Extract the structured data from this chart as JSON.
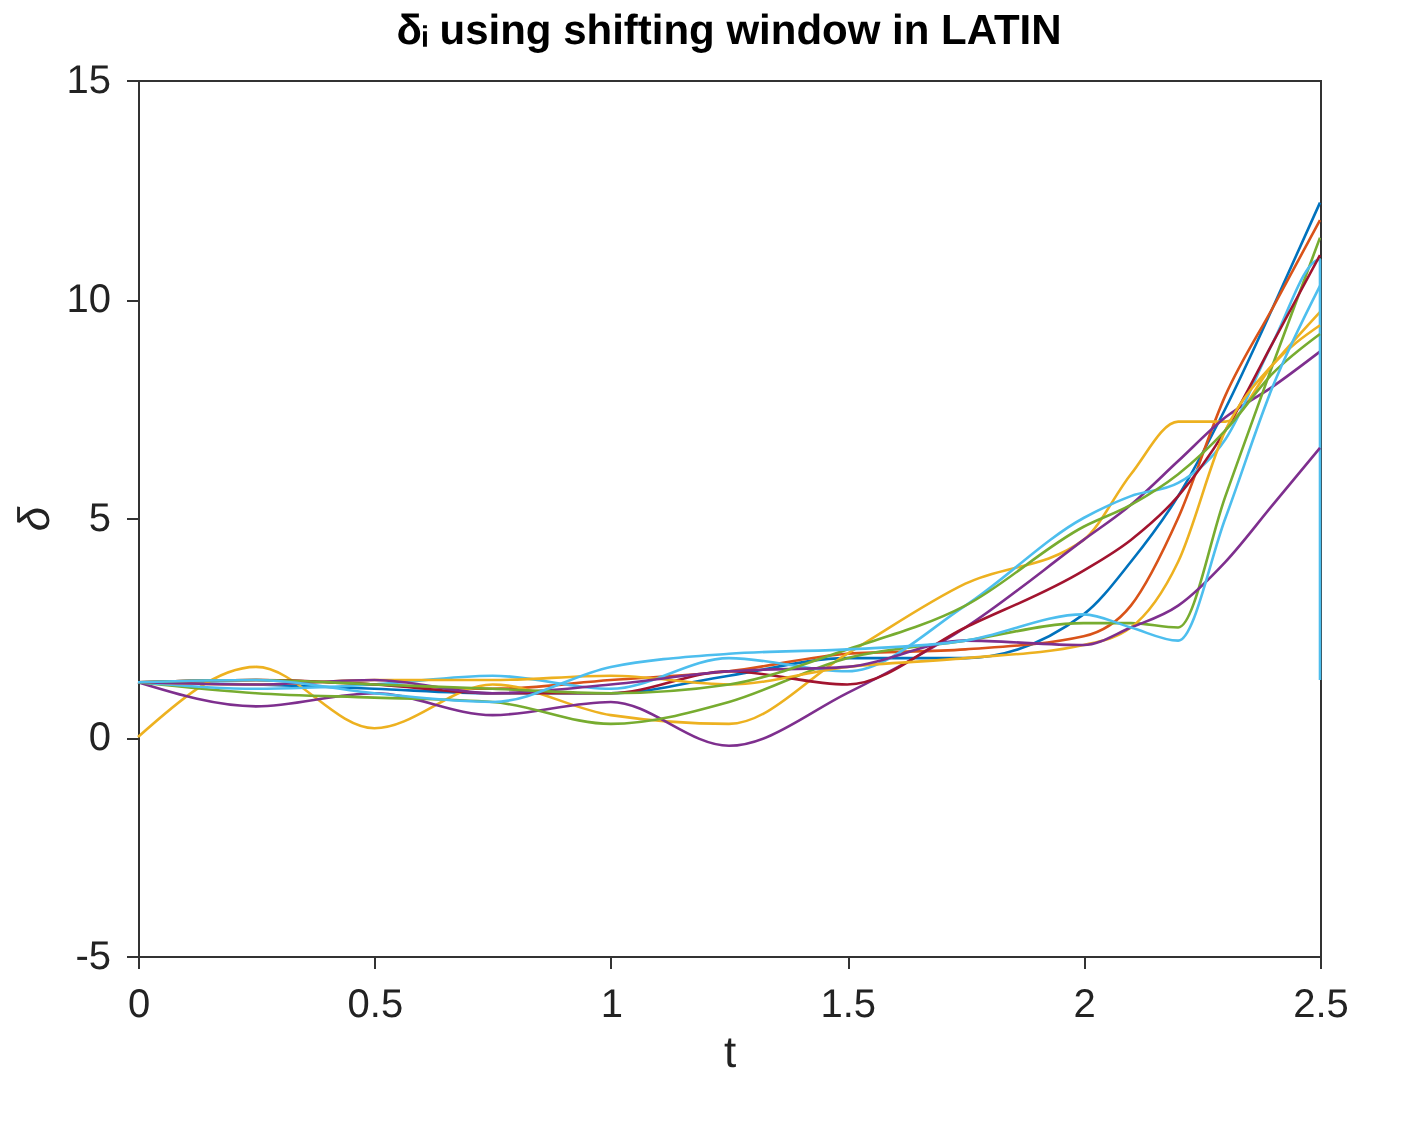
{
  "chart_data": {
    "type": "line",
    "title": "δᵢ using shifting window in LATIN",
    "xlabel": "t",
    "ylabel": "δ",
    "x": [
      0,
      0.25,
      0.5,
      0.75,
      1,
      1.25,
      1.5,
      1.75,
      2,
      2.1,
      2.2,
      2.3,
      2.4,
      2.5
    ],
    "series": [
      {
        "color": "#0072bd",
        "values": [
          1.25,
          1.2,
          1.1,
          1.0,
          1.0,
          1.4,
          1.8,
          1.8,
          2.8,
          4.0,
          5.5,
          7.5,
          9.8,
          12.2
        ]
      },
      {
        "color": "#d95319",
        "values": [
          1.25,
          1.3,
          1.2,
          1.1,
          1.3,
          1.5,
          1.9,
          2.0,
          2.3,
          3.0,
          5.0,
          7.8,
          9.8,
          11.8
        ]
      },
      {
        "color": "#edb120",
        "values": [
          0,
          1.6,
          0.2,
          1.2,
          0.5,
          0.3,
          1.9,
          3.5,
          4.5,
          6.0,
          7.2,
          7.2,
          8.5,
          9.7
        ]
      },
      {
        "color": "#7e2f8e",
        "values": [
          1.25,
          0.7,
          1.0,
          0.5,
          0.8,
          -0.2,
          1.0,
          2.5,
          4.5,
          5.3,
          6.3,
          7.3,
          8.0,
          8.8
        ]
      },
      {
        "color": "#77ac30",
        "values": [
          1.25,
          1.0,
          0.9,
          0.8,
          0.3,
          0.8,
          1.8,
          2.2,
          2.6,
          2.6,
          2.5,
          5.5,
          8.5,
          11.4
        ]
      },
      {
        "color": "#4dbeee",
        "x": [
          0,
          0.25,
          0.5,
          0.75,
          1,
          1.25,
          1.5,
          1.75,
          2,
          2.1,
          2.2,
          2.3,
          2.4,
          2.5,
          2.5
        ],
        "values": [
          1.25,
          1.1,
          1.2,
          1.4,
          1.1,
          1.8,
          1.5,
          3.0,
          5.0,
          5.5,
          5.8,
          6.8,
          9.0,
          10.9,
          1.3
        ]
      },
      {
        "color": "#a2142f",
        "values": [
          1.25,
          1.3,
          1.2,
          1.0,
          1.0,
          1.5,
          1.2,
          2.5,
          3.8,
          4.5,
          5.5,
          7.0,
          9.0,
          11.0
        ]
      },
      {
        "color": "#edb120",
        "values": [
          1.25,
          1.2,
          1.3,
          1.3,
          1.4,
          1.2,
          1.6,
          1.8,
          2.1,
          2.5,
          4.0,
          7.0,
          8.5,
          9.4
        ]
      },
      {
        "color": "#7e2f8e",
        "values": [
          1.25,
          1.2,
          1.3,
          1.0,
          1.2,
          1.5,
          1.6,
          2.2,
          2.1,
          2.5,
          3.0,
          4.0,
          5.3,
          6.6
        ]
      },
      {
        "color": "#77ac30",
        "values": [
          1.25,
          1.3,
          1.2,
          1.1,
          1.0,
          1.2,
          2.0,
          3.0,
          4.8,
          5.3,
          6.0,
          7.0,
          8.3,
          9.2
        ]
      },
      {
        "color": "#4dbeee",
        "values": [
          1.25,
          1.3,
          1.0,
          0.8,
          1.6,
          1.9,
          2.0,
          2.2,
          2.8,
          2.5,
          2.2,
          5.0,
          8.0,
          10.3
        ]
      }
    ],
    "xlim": [
      0,
      2.5
    ],
    "xticks": [
      0,
      0.5,
      1,
      1.5,
      2,
      2.5
    ],
    "ylim": [
      -5,
      15
    ],
    "yticks": [
      -5,
      0,
      5,
      10,
      15
    ],
    "grid": false,
    "legend": false,
    "marker": "none",
    "line_style": "solid"
  }
}
